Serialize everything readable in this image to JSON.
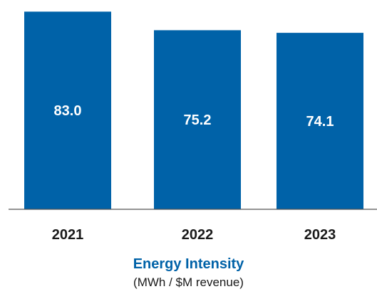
{
  "colors": {
    "bar": "#0062a8",
    "title": "#0062a8",
    "axis": "#555555"
  },
  "chart_data": {
    "type": "bar",
    "title": "Energy Intensity",
    "subtitle": "(MWh / $M revenue)",
    "categories": [
      "2021",
      "2022",
      "2023"
    ],
    "values": [
      83.0,
      75.2,
      74.1
    ],
    "value_labels": [
      "83.0",
      "75.2",
      "74.1"
    ],
    "ylim": [
      0,
      84
    ],
    "grid": false,
    "legend": "none"
  }
}
